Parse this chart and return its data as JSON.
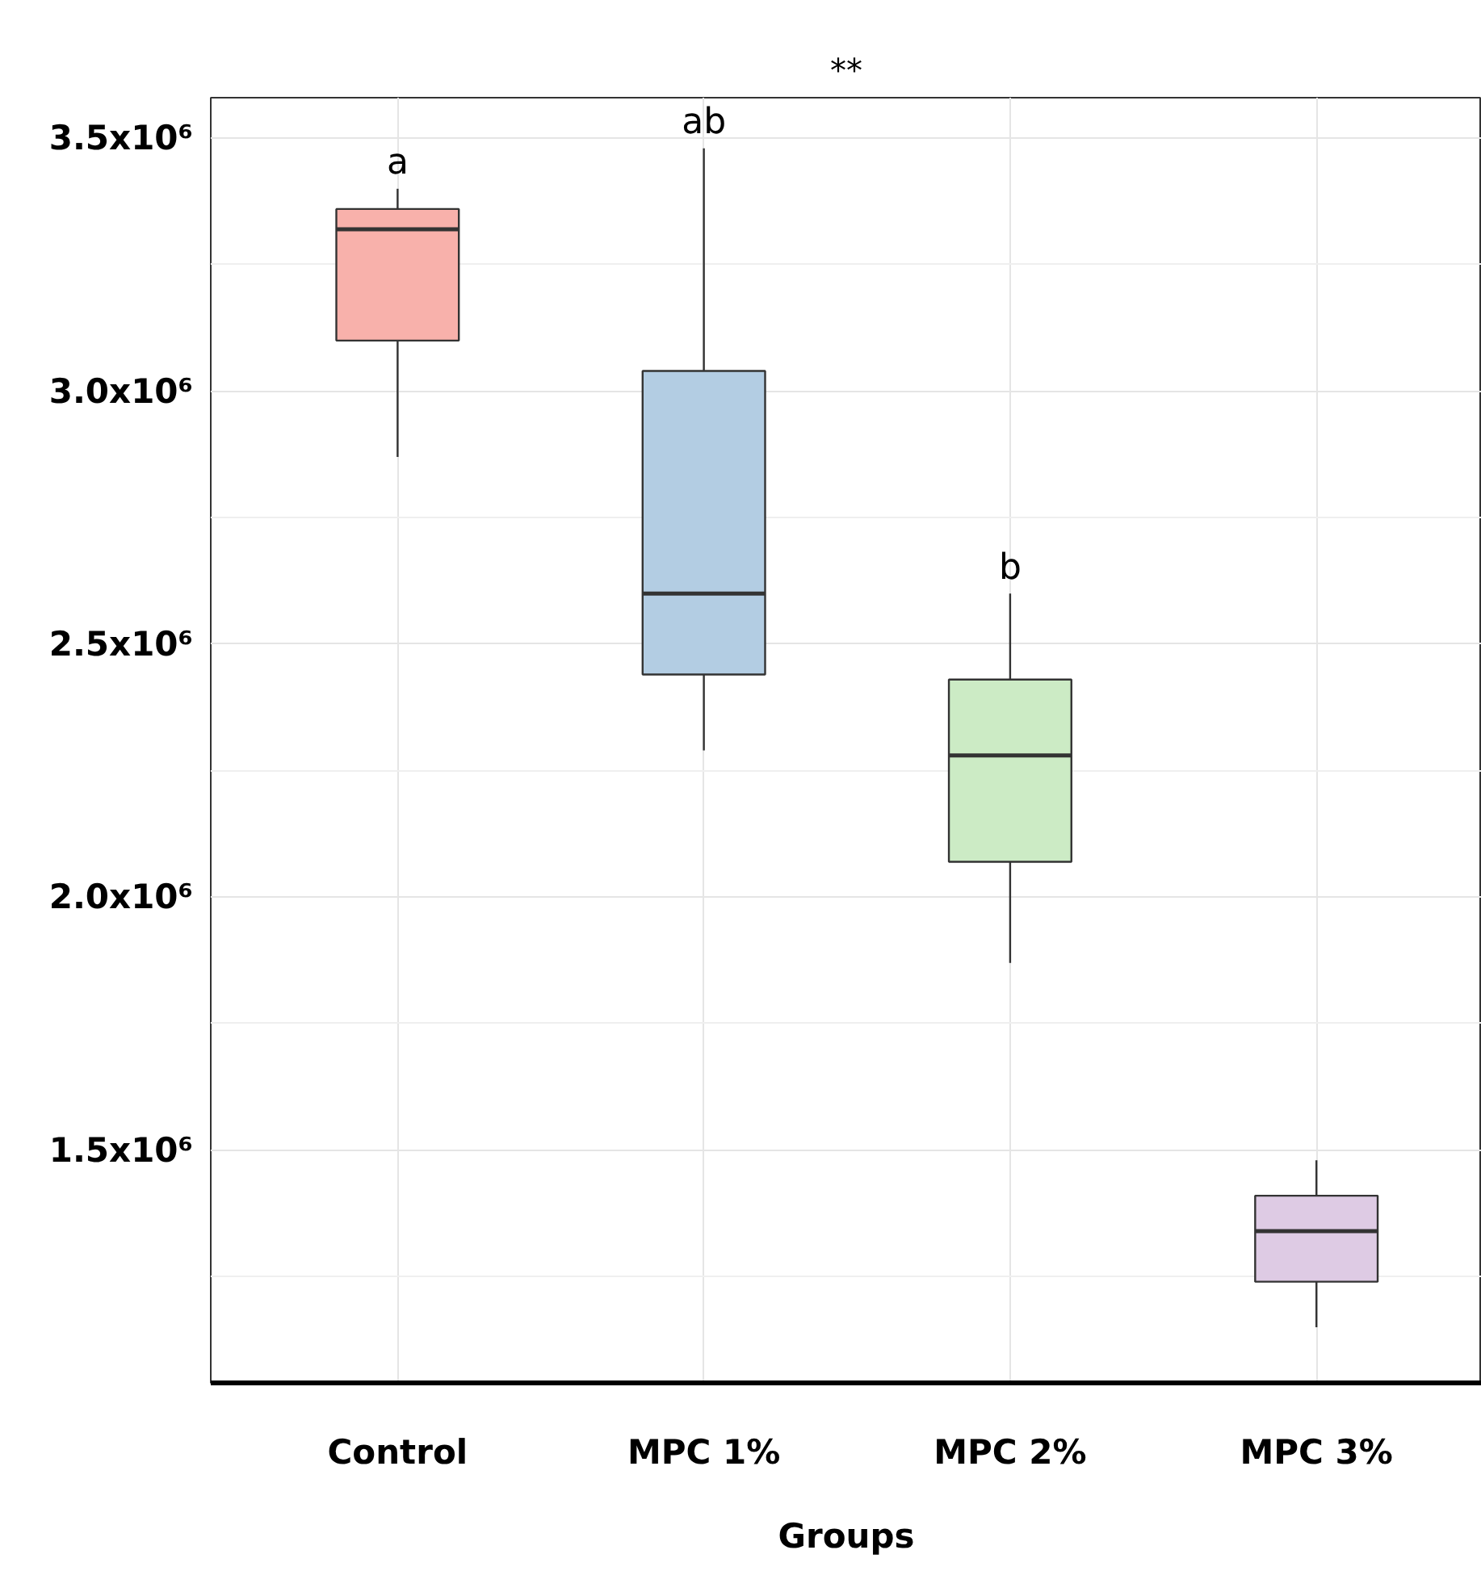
{
  "chart_data": {
    "type": "box",
    "title": "**",
    "xlabel": "Groups",
    "categories": [
      "Control",
      "MPC 1%",
      "MPC 2%",
      "MPC 3%"
    ],
    "colors": [
      "#f8b1ab",
      "#b3cde3",
      "#ccebc5",
      "#decbe4"
    ],
    "boxes": [
      {
        "low": 2870000,
        "q1": 3100000,
        "median": 3320000,
        "q3": 3360000,
        "high": 3400000
      },
      {
        "low": 2290000,
        "q1": 2440000,
        "median": 2600000,
        "q3": 3040000,
        "high": 3480000
      },
      {
        "low": 1870000,
        "q1": 2070000,
        "median": 2280000,
        "q3": 2430000,
        "high": 2600000
      },
      {
        "low": 1150000,
        "q1": 1240000,
        "median": 1340000,
        "q3": 1410000,
        "high": 1480000
      }
    ],
    "ylim": [
      1040000,
      3580000
    ],
    "yticks": [
      {
        "value": 1500000,
        "label": "1.5x10⁶"
      },
      {
        "value": 2000000,
        "label": "2.0x10⁶"
      },
      {
        "value": 2500000,
        "label": "2.5x10⁶"
      },
      {
        "value": 3000000,
        "label": "3.0x10⁶"
      },
      {
        "value": 3500000,
        "label": "3.5x10⁶"
      }
    ],
    "grid": true,
    "annotations": [
      "a",
      "ab",
      "b"
    ]
  }
}
